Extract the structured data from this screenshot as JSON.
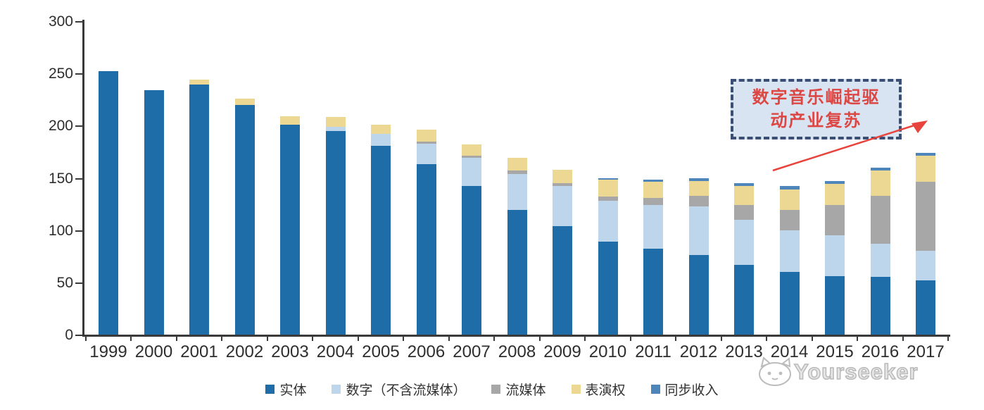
{
  "watermark": {
    "text": "Yourseeker"
  },
  "annotation": {
    "line1": "数字音乐崛起驱",
    "line2": "动产业复苏",
    "text_color": "#dc4643",
    "border_color": "#3b4f75",
    "bg_color": "#d9e4f2",
    "arrow_color": "#e8433c"
  },
  "chart_data": {
    "type": "bar",
    "stacked": true,
    "title": "",
    "xlabel": "",
    "ylabel": "",
    "categories": [
      "1999",
      "2000",
      "2001",
      "2002",
      "2003",
      "2004",
      "2005",
      "2006",
      "2007",
      "2008",
      "2009",
      "2010",
      "2011",
      "2012",
      "2013",
      "2014",
      "2015",
      "2016",
      "2017"
    ],
    "series": [
      {
        "name": "实体",
        "color": "#1e6ca8",
        "values": [
          252,
          234,
          239,
          220,
          201,
          195,
          181,
          163,
          142,
          119,
          104,
          89,
          82,
          76,
          67,
          60,
          56,
          55,
          52
        ]
      },
      {
        "name": "数字（不含流媒体）",
        "color": "#bdd6ec",
        "values": [
          0,
          0,
          0,
          0,
          0,
          4,
          11,
          20,
          27,
          35,
          38,
          39,
          42,
          47,
          43,
          40,
          39,
          32,
          28
        ]
      },
      {
        "name": "流媒体",
        "color": "#a7a7a7",
        "values": [
          0,
          0,
          0,
          0,
          0,
          0,
          0,
          2,
          2,
          3,
          3,
          4,
          7,
          10,
          14,
          19,
          29,
          46,
          66
        ]
      },
      {
        "name": "表演权",
        "color": "#ecd893",
        "values": [
          0,
          0,
          5,
          6,
          8,
          9,
          9,
          11,
          11,
          12,
          13,
          16,
          15,
          14,
          18,
          20,
          20,
          24,
          25
        ]
      },
      {
        "name": "同步收入",
        "color": "#4e86bc",
        "values": [
          0,
          0,
          0,
          0,
          0,
          0,
          0,
          0,
          0,
          0,
          0,
          2,
          2,
          3,
          3,
          3,
          3,
          3,
          3
        ]
      }
    ],
    "ylim": [
      0,
      300
    ],
    "yticks": [
      0,
      50,
      100,
      150,
      200,
      250,
      300
    ],
    "grid": false,
    "legend_position": "bottom"
  }
}
